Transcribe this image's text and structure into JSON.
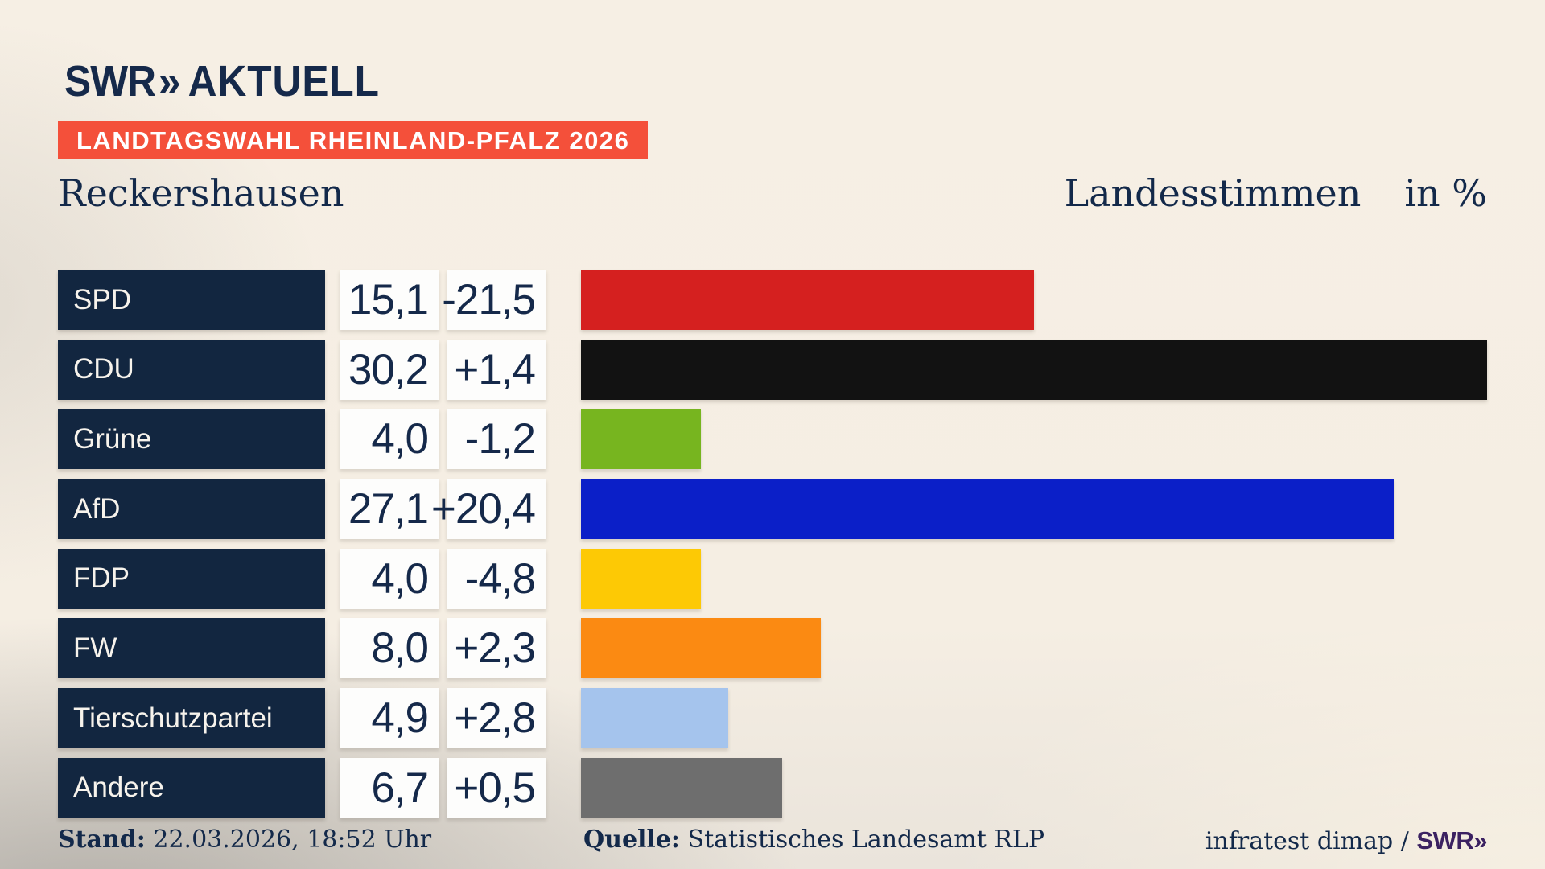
{
  "brand": {
    "swr": "SWR",
    "chevrons": "»",
    "aktuell": "AKTUELL"
  },
  "banner": {
    "text": "LANDTAGSWAHL RHEINLAND-PFALZ 2026",
    "bg_color": "#f4503a",
    "text_color": "#ffffff"
  },
  "chart_data": {
    "type": "bar",
    "orientation": "horizontal",
    "title_left": "Reckershausen",
    "title_right": "Landesstimmen",
    "unit_label": "in %",
    "xlim": [
      0,
      30.2
    ],
    "grid": false,
    "categories": [
      "SPD",
      "CDU",
      "Grüne",
      "AfD",
      "FDP",
      "FW",
      "Tierschutzpartei",
      "Andere"
    ],
    "series": [
      {
        "party": "SPD",
        "value": 15.1,
        "value_label": "15,1",
        "delta": -21.5,
        "delta_label": "-21,5",
        "color": "#d5201f"
      },
      {
        "party": "CDU",
        "value": 30.2,
        "value_label": "30,2",
        "delta": 1.4,
        "delta_label": "+1,4",
        "color": "#121212"
      },
      {
        "party": "Grüne",
        "value": 4.0,
        "value_label": "4,0",
        "delta": -1.2,
        "delta_label": "-1,2",
        "color": "#77b51f"
      },
      {
        "party": "AfD",
        "value": 27.1,
        "value_label": "27,1",
        "delta": 20.4,
        "delta_label": "+20,4",
        "color": "#0b1fc8"
      },
      {
        "party": "FDP",
        "value": 4.0,
        "value_label": "4,0",
        "delta": -4.8,
        "delta_label": "-4,8",
        "color": "#fdc905"
      },
      {
        "party": "FW",
        "value": 8.0,
        "value_label": "8,0",
        "delta": 2.3,
        "delta_label": "+2,3",
        "color": "#fb8a12"
      },
      {
        "party": "Tierschutzpartei",
        "value": 4.9,
        "value_label": "4,9",
        "delta": 2.8,
        "delta_label": "+2,8",
        "color": "#a5c4ed"
      },
      {
        "party": "Andere",
        "value": 6.7,
        "value_label": "6,7",
        "delta": 0.5,
        "delta_label": "+0,5",
        "color": "#6e6e6e"
      }
    ],
    "colors": {
      "label_box_bg": "#122640",
      "label_text": "#f7f3ec",
      "value_box_bg": "#fdfdfc",
      "value_text": "#15294a"
    }
  },
  "footer": {
    "stand_label": "Stand:",
    "stand_value": " 22.03.2026, 18:52 Uhr",
    "quelle_label": "Quelle:",
    "quelle_value": " Statistisches Landesamt RLP",
    "credit_text": "infratest dimap / ",
    "credit_brand": "SWR»"
  }
}
